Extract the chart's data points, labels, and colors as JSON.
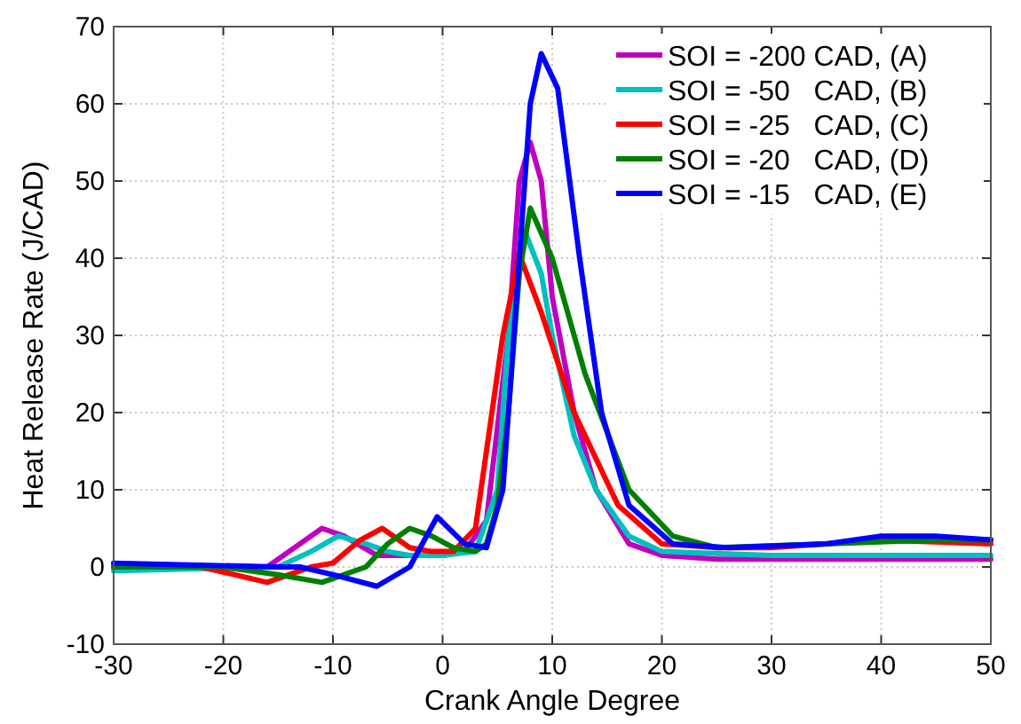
{
  "chart_data": {
    "type": "line",
    "xlabel": "Crank Angle Degree",
    "ylabel": "Heat Release Rate (J/CAD)",
    "xlim": [
      -30,
      50
    ],
    "ylim": [
      -10,
      70
    ],
    "xticks": [
      -30,
      -20,
      -10,
      0,
      10,
      20,
      30,
      40,
      50
    ],
    "yticks": [
      -10,
      0,
      10,
      20,
      30,
      40,
      50,
      60,
      70
    ],
    "grid": true,
    "legend": "top right",
    "line_style": "solid",
    "marker": "none",
    "series": [
      {
        "name": "SOI = -200 CAD, (A)",
        "color": "#bf00bf",
        "x": [
          -30,
          -16,
          -13,
          -11,
          -9,
          -6,
          -3,
          0,
          2,
          4,
          6,
          7,
          8,
          9,
          10,
          12,
          14,
          17,
          20,
          25,
          35,
          50
        ],
        "values": [
          0,
          0,
          3,
          5,
          4,
          1.5,
          1.5,
          1.5,
          2,
          6,
          30,
          50,
          55,
          50,
          35,
          20,
          10,
          3,
          1.5,
          1,
          1,
          1
        ]
      },
      {
        "name": "SOI = -50   CAD, (B)",
        "color": "#00bfbf",
        "x": [
          -30,
          -15,
          -12,
          -9.5,
          -7,
          -5,
          -3,
          0,
          3,
          5,
          6,
          7.5,
          9,
          10,
          12,
          14,
          17,
          20,
          30,
          50
        ],
        "values": [
          -0.5,
          0,
          2,
          4,
          3,
          2,
          1.5,
          1.5,
          2,
          10,
          30,
          43.5,
          38,
          30,
          17,
          10,
          4,
          2,
          1.5,
          1.5
        ]
      },
      {
        "name": "SOI = -25   CAD, (C)",
        "color": "#ff0000",
        "x": [
          -30,
          -22,
          -19,
          -16,
          -12,
          -10,
          -7.5,
          -5.5,
          -3,
          -1,
          1,
          3,
          4,
          5.5,
          7,
          9,
          12,
          16,
          20,
          25,
          30,
          40,
          50
        ],
        "values": [
          0,
          0,
          -1,
          -2,
          0,
          0.5,
          3.5,
          5,
          2.5,
          2,
          2,
          5,
          15,
          30,
          40.5,
          33,
          20,
          8,
          3,
          2.5,
          2.5,
          3.5,
          3
        ]
      },
      {
        "name": "SOI = -20   CAD, (D)",
        "color": "#008000",
        "x": [
          -30,
          -20,
          -15,
          -11,
          -7,
          -5,
          -3,
          -1,
          1,
          3,
          4,
          5,
          6,
          7,
          8,
          10,
          13,
          17,
          21,
          25,
          35,
          45,
          50
        ],
        "values": [
          0,
          0,
          -1,
          -2,
          0,
          3,
          5,
          4,
          2.5,
          2,
          3,
          8,
          20,
          38,
          46.5,
          40,
          25,
          10,
          4,
          2.5,
          3,
          3.5,
          3.5
        ]
      },
      {
        "name": "SOI = -15   CAD, (E)",
        "color": "#0000ff",
        "x": [
          -30,
          -15,
          -13,
          -10,
          -6,
          -3,
          -0.5,
          2,
          4,
          5.5,
          7,
          8,
          9,
          10.5,
          12.5,
          14.5,
          17,
          21,
          26,
          35,
          40,
          45,
          50
        ],
        "values": [
          0.5,
          0,
          0,
          -1,
          -2.5,
          0,
          6.5,
          3,
          2.5,
          10,
          40,
          60,
          66.5,
          62,
          40,
          20,
          8,
          3,
          2.5,
          3,
          4,
          4,
          3.5
        ]
      }
    ]
  }
}
